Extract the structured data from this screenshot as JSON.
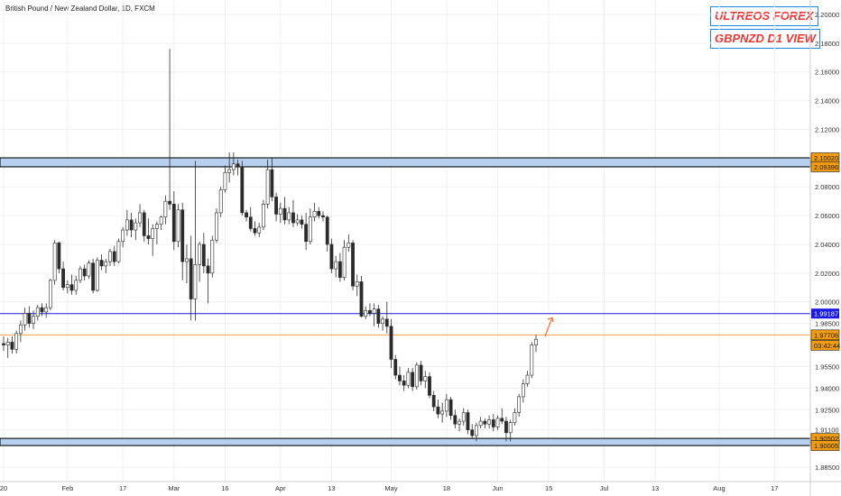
{
  "header": {
    "symbol_title": "British Pound / New Zealand Dollar, 1D, FXCM",
    "watermark_1": "ULTREOS FOREX",
    "watermark_2": "GBPNZD D1 VIEW"
  },
  "colors": {
    "bull_candle": "#ffffff",
    "bear_candle": "#2b2b2b",
    "zone_fill": "#b8d0f0",
    "resistance_line": "#1a1ae0",
    "price_line": "#f0a040",
    "badge_orange": "#f39c12",
    "badge_blue": "#1a1ae0",
    "arrow": "#f07030"
  },
  "chart_data": {
    "type": "candlestick",
    "title": "British Pound / New Zealand Dollar, 1D, FXCM",
    "ylim": [
      1.875,
      2.21
    ],
    "y_ticks": [
      "2.20000",
      "2.18000",
      "2.16000",
      "2.14000",
      "2.12000",
      "2.08000",
      "2.06000",
      "2.04000",
      "2.02000",
      "2.00000",
      "1.98500",
      "1.95500",
      "1.94000",
      "1.92500",
      "1.91100",
      "1.88500"
    ],
    "x_ticks": [
      "20",
      "Feb",
      "17",
      "Mar",
      "16",
      "Apr",
      "13",
      "May",
      "18",
      "Jun",
      "15",
      "Jul",
      "13",
      "Aug",
      "17"
    ],
    "x_tick_index": [
      0,
      15,
      28,
      40,
      52,
      65,
      77,
      91,
      104,
      116,
      128,
      141,
      153,
      168,
      181
    ],
    "zones": [
      {
        "top": 2.1002,
        "bottom": 2.09396
      },
      {
        "top": 1.90502,
        "bottom": 1.90005
      }
    ],
    "lines": [
      {
        "name": "resistance",
        "value": 1.99187
      },
      {
        "name": "last-price",
        "value": 1.97706
      }
    ],
    "price_labels": [
      {
        "text": "2.10020",
        "value": 2.1002,
        "style": "orange"
      },
      {
        "text": "2.09396",
        "value": 2.09396,
        "style": "orange"
      },
      {
        "text": "1.99187",
        "value": 1.99187,
        "style": "blue"
      },
      {
        "text": "1.97706",
        "value": 1.97706,
        "style": "orange"
      },
      {
        "text": "03:42:44",
        "value": 1.9698,
        "style": "orange"
      },
      {
        "text": "1.90502",
        "value": 1.90502,
        "style": "orange"
      },
      {
        "text": "1.90005",
        "value": 1.90005,
        "style": "orange"
      }
    ],
    "candles": [
      {
        "o": 1.971,
        "h": 1.976,
        "l": 1.966,
        "c": 1.97
      },
      {
        "o": 1.97,
        "h": 1.975,
        "l": 1.961,
        "c": 1.972
      },
      {
        "o": 1.972,
        "h": 1.976,
        "l": 1.964,
        "c": 1.967
      },
      {
        "o": 1.967,
        "h": 1.98,
        "l": 1.964,
        "c": 1.978
      },
      {
        "o": 1.978,
        "h": 1.987,
        "l": 1.972,
        "c": 1.984
      },
      {
        "o": 1.984,
        "h": 1.996,
        "l": 1.98,
        "c": 1.992
      },
      {
        "o": 1.992,
        "h": 1.997,
        "l": 1.982,
        "c": 1.985
      },
      {
        "o": 1.985,
        "h": 1.994,
        "l": 1.981,
        "c": 1.99
      },
      {
        "o": 1.99,
        "h": 1.998,
        "l": 1.987,
        "c": 1.996
      },
      {
        "o": 1.996,
        "h": 1.999,
        "l": 1.99,
        "c": 1.993
      },
      {
        "o": 1.993,
        "h": 1.999,
        "l": 1.989,
        "c": 1.996
      },
      {
        "o": 1.996,
        "h": 2.016,
        "l": 1.994,
        "c": 2.015
      },
      {
        "o": 2.015,
        "h": 2.043,
        "l": 2.012,
        "c": 2.041
      },
      {
        "o": 2.041,
        "h": 2.042,
        "l": 2.02,
        "c": 2.023
      },
      {
        "o": 2.023,
        "h": 2.028,
        "l": 2.008,
        "c": 2.01
      },
      {
        "o": 2.01,
        "h": 2.015,
        "l": 2.006,
        "c": 2.012
      },
      {
        "o": 2.012,
        "h": 2.019,
        "l": 2.005,
        "c": 2.008
      },
      {
        "o": 2.008,
        "h": 2.018,
        "l": 2.005,
        "c": 2.015
      },
      {
        "o": 2.015,
        "h": 2.025,
        "l": 2.013,
        "c": 2.023
      },
      {
        "o": 2.023,
        "h": 2.026,
        "l": 2.015,
        "c": 2.018
      },
      {
        "o": 2.018,
        "h": 2.029,
        "l": 2.016,
        "c": 2.027
      },
      {
        "o": 2.027,
        "h": 2.03,
        "l": 2.006,
        "c": 2.008
      },
      {
        "o": 2.008,
        "h": 2.031,
        "l": 2.007,
        "c": 2.029
      },
      {
        "o": 2.029,
        "h": 2.033,
        "l": 2.022,
        "c": 2.025
      },
      {
        "o": 2.025,
        "h": 2.03,
        "l": 2.02,
        "c": 2.028
      },
      {
        "o": 2.028,
        "h": 2.037,
        "l": 2.025,
        "c": 2.035
      },
      {
        "o": 2.035,
        "h": 2.039,
        "l": 2.025,
        "c": 2.028
      },
      {
        "o": 2.028,
        "h": 2.044,
        "l": 2.027,
        "c": 2.042
      },
      {
        "o": 2.042,
        "h": 2.052,
        "l": 2.038,
        "c": 2.05
      },
      {
        "o": 2.05,
        "h": 2.064,
        "l": 2.046,
        "c": 2.057
      },
      {
        "o": 2.057,
        "h": 2.062,
        "l": 2.045,
        "c": 2.05
      },
      {
        "o": 2.05,
        "h": 2.058,
        "l": 2.043,
        "c": 2.055
      },
      {
        "o": 2.055,
        "h": 2.068,
        "l": 2.052,
        "c": 2.062
      },
      {
        "o": 2.062,
        "h": 2.064,
        "l": 2.042,
        "c": 2.046
      },
      {
        "o": 2.046,
        "h": 2.058,
        "l": 2.04,
        "c": 2.044
      },
      {
        "o": 2.044,
        "h": 2.054,
        "l": 2.032,
        "c": 2.051
      },
      {
        "o": 2.051,
        "h": 2.056,
        "l": 2.04,
        "c": 2.054
      },
      {
        "o": 2.054,
        "h": 2.06,
        "l": 2.05,
        "c": 2.059
      },
      {
        "o": 2.059,
        "h": 2.074,
        "l": 2.054,
        "c": 2.07
      },
      {
        "o": 2.07,
        "h": 2.176,
        "l": 2.064,
        "c": 2.068
      },
      {
        "o": 2.068,
        "h": 2.077,
        "l": 2.036,
        "c": 2.042
      },
      {
        "o": 2.042,
        "h": 2.068,
        "l": 2.038,
        "c": 2.064
      },
      {
        "o": 2.064,
        "h": 2.069,
        "l": 2.015,
        "c": 2.028
      },
      {
        "o": 2.028,
        "h": 2.04,
        "l": 2.013,
        "c": 2.03
      },
      {
        "o": 2.03,
        "h": 2.046,
        "l": 1.987,
        "c": 2.002
      },
      {
        "o": 2.002,
        "h": 2.098,
        "l": 1.987,
        "c": 2.026
      },
      {
        "o": 2.026,
        "h": 2.042,
        "l": 2.014,
        "c": 2.04
      },
      {
        "o": 2.04,
        "h": 2.048,
        "l": 2.02,
        "c": 2.025
      },
      {
        "o": 2.025,
        "h": 2.03,
        "l": 1.999,
        "c": 2.02
      },
      {
        "o": 2.02,
        "h": 2.046,
        "l": 2.017,
        "c": 2.043
      },
      {
        "o": 2.043,
        "h": 2.065,
        "l": 2.041,
        "c": 2.062
      },
      {
        "o": 2.062,
        "h": 2.08,
        "l": 2.059,
        "c": 2.078
      },
      {
        "o": 2.078,
        "h": 2.095,
        "l": 2.076,
        "c": 2.09
      },
      {
        "o": 2.09,
        "h": 2.104,
        "l": 2.083,
        "c": 2.092
      },
      {
        "o": 2.092,
        "h": 2.104,
        "l": 2.088,
        "c": 2.096
      },
      {
        "o": 2.096,
        "h": 2.099,
        "l": 2.088,
        "c": 2.094
      },
      {
        "o": 2.094,
        "h": 2.098,
        "l": 2.06,
        "c": 2.062
      },
      {
        "o": 2.062,
        "h": 2.064,
        "l": 2.056,
        "c": 2.059
      },
      {
        "o": 2.059,
        "h": 2.066,
        "l": 2.049,
        "c": 2.051
      },
      {
        "o": 2.051,
        "h": 2.056,
        "l": 2.046,
        "c": 2.048
      },
      {
        "o": 2.048,
        "h": 2.055,
        "l": 2.045,
        "c": 2.052
      },
      {
        "o": 2.052,
        "h": 2.071,
        "l": 2.05,
        "c": 2.068
      },
      {
        "o": 2.068,
        "h": 2.099,
        "l": 2.065,
        "c": 2.092
      },
      {
        "o": 2.092,
        "h": 2.1,
        "l": 2.07,
        "c": 2.073
      },
      {
        "o": 2.073,
        "h": 2.076,
        "l": 2.056,
        "c": 2.061
      },
      {
        "o": 2.061,
        "h": 2.069,
        "l": 2.055,
        "c": 2.065
      },
      {
        "o": 2.065,
        "h": 2.073,
        "l": 2.054,
        "c": 2.057
      },
      {
        "o": 2.057,
        "h": 2.066,
        "l": 2.054,
        "c": 2.062
      },
      {
        "o": 2.062,
        "h": 2.071,
        "l": 2.052,
        "c": 2.055
      },
      {
        "o": 2.055,
        "h": 2.061,
        "l": 2.053,
        "c": 2.057
      },
      {
        "o": 2.057,
        "h": 2.06,
        "l": 2.051,
        "c": 2.054
      },
      {
        "o": 2.054,
        "h": 2.062,
        "l": 2.036,
        "c": 2.042
      },
      {
        "o": 2.042,
        "h": 2.065,
        "l": 2.04,
        "c": 2.059
      },
      {
        "o": 2.059,
        "h": 2.069,
        "l": 2.056,
        "c": 2.063
      },
      {
        "o": 2.063,
        "h": 2.066,
        "l": 2.058,
        "c": 2.06
      },
      {
        "o": 2.06,
        "h": 2.063,
        "l": 2.056,
        "c": 2.059
      },
      {
        "o": 2.059,
        "h": 2.06,
        "l": 2.035,
        "c": 2.04
      },
      {
        "o": 2.04,
        "h": 2.044,
        "l": 2.02,
        "c": 2.023
      },
      {
        "o": 2.023,
        "h": 2.032,
        "l": 2.017,
        "c": 2.028
      },
      {
        "o": 2.028,
        "h": 2.034,
        "l": 2.014,
        "c": 2.017
      },
      {
        "o": 2.017,
        "h": 2.043,
        "l": 2.015,
        "c": 2.038
      },
      {
        "o": 2.038,
        "h": 2.047,
        "l": 2.035,
        "c": 2.041
      },
      {
        "o": 2.041,
        "h": 2.043,
        "l": 2.008,
        "c": 2.011
      },
      {
        "o": 2.011,
        "h": 2.019,
        "l": 2.004,
        "c": 2.014
      },
      {
        "o": 2.014,
        "h": 2.018,
        "l": 1.989,
        "c": 1.99
      },
      {
        "o": 1.99,
        "h": 1.997,
        "l": 1.988,
        "c": 1.994
      },
      {
        "o": 1.994,
        "h": 1.999,
        "l": 1.99,
        "c": 1.992
      },
      {
        "o": 1.992,
        "h": 1.999,
        "l": 1.983,
        "c": 1.995
      },
      {
        "o": 1.995,
        "h": 1.998,
        "l": 1.982,
        "c": 1.985
      },
      {
        "o": 1.985,
        "h": 1.99,
        "l": 1.98,
        "c": 1.988
      },
      {
        "o": 1.988,
        "h": 2.0,
        "l": 1.978,
        "c": 1.983
      },
      {
        "o": 1.983,
        "h": 1.988,
        "l": 1.954,
        "c": 1.96
      },
      {
        "o": 1.96,
        "h": 1.963,
        "l": 1.946,
        "c": 1.949
      },
      {
        "o": 1.949,
        "h": 1.955,
        "l": 1.942,
        "c": 1.945
      },
      {
        "o": 1.945,
        "h": 1.949,
        "l": 1.938,
        "c": 1.942
      },
      {
        "o": 1.942,
        "h": 1.954,
        "l": 1.94,
        "c": 1.951
      },
      {
        "o": 1.951,
        "h": 1.954,
        "l": 1.938,
        "c": 1.941
      },
      {
        "o": 1.941,
        "h": 1.958,
        "l": 1.939,
        "c": 1.956
      },
      {
        "o": 1.956,
        "h": 1.959,
        "l": 1.942,
        "c": 1.945
      },
      {
        "o": 1.945,
        "h": 1.952,
        "l": 1.94,
        "c": 1.948
      },
      {
        "o": 1.948,
        "h": 1.951,
        "l": 1.933,
        "c": 1.935
      },
      {
        "o": 1.935,
        "h": 1.938,
        "l": 1.924,
        "c": 1.927
      },
      {
        "o": 1.927,
        "h": 1.932,
        "l": 1.919,
        "c": 1.922
      },
      {
        "o": 1.922,
        "h": 1.93,
        "l": 1.916,
        "c": 1.924
      },
      {
        "o": 1.924,
        "h": 1.936,
        "l": 1.92,
        "c": 1.932
      },
      {
        "o": 1.932,
        "h": 1.934,
        "l": 1.918,
        "c": 1.921
      },
      {
        "o": 1.921,
        "h": 1.925,
        "l": 1.912,
        "c": 1.915
      },
      {
        "o": 1.915,
        "h": 1.919,
        "l": 1.91,
        "c": 1.917
      },
      {
        "o": 1.917,
        "h": 1.926,
        "l": 1.914,
        "c": 1.923
      },
      {
        "o": 1.923,
        "h": 1.925,
        "l": 1.908,
        "c": 1.911
      },
      {
        "o": 1.911,
        "h": 1.915,
        "l": 1.905,
        "c": 1.907
      },
      {
        "o": 1.907,
        "h": 1.916,
        "l": 1.903,
        "c": 1.914
      },
      {
        "o": 1.914,
        "h": 1.92,
        "l": 1.912,
        "c": 1.917
      },
      {
        "o": 1.917,
        "h": 1.919,
        "l": 1.912,
        "c": 1.915
      },
      {
        "o": 1.915,
        "h": 1.921,
        "l": 1.912,
        "c": 1.918
      },
      {
        "o": 1.918,
        "h": 1.922,
        "l": 1.91,
        "c": 1.913
      },
      {
        "o": 1.913,
        "h": 1.921,
        "l": 1.911,
        "c": 1.919
      },
      {
        "o": 1.919,
        "h": 1.926,
        "l": 1.915,
        "c": 1.917
      },
      {
        "o": 1.917,
        "h": 1.92,
        "l": 1.903,
        "c": 1.909
      },
      {
        "o": 1.909,
        "h": 1.918,
        "l": 1.903,
        "c": 1.916
      },
      {
        "o": 1.916,
        "h": 1.926,
        "l": 1.914,
        "c": 1.923
      },
      {
        "o": 1.923,
        "h": 1.936,
        "l": 1.92,
        "c": 1.934
      },
      {
        "o": 1.934,
        "h": 1.946,
        "l": 1.93,
        "c": 1.943
      },
      {
        "o": 1.943,
        "h": 1.952,
        "l": 1.941,
        "c": 1.949
      },
      {
        "o": 1.949,
        "h": 1.972,
        "l": 1.947,
        "c": 1.97
      },
      {
        "o": 1.97,
        "h": 1.977,
        "l": 1.965,
        "c": 1.974
      }
    ]
  }
}
